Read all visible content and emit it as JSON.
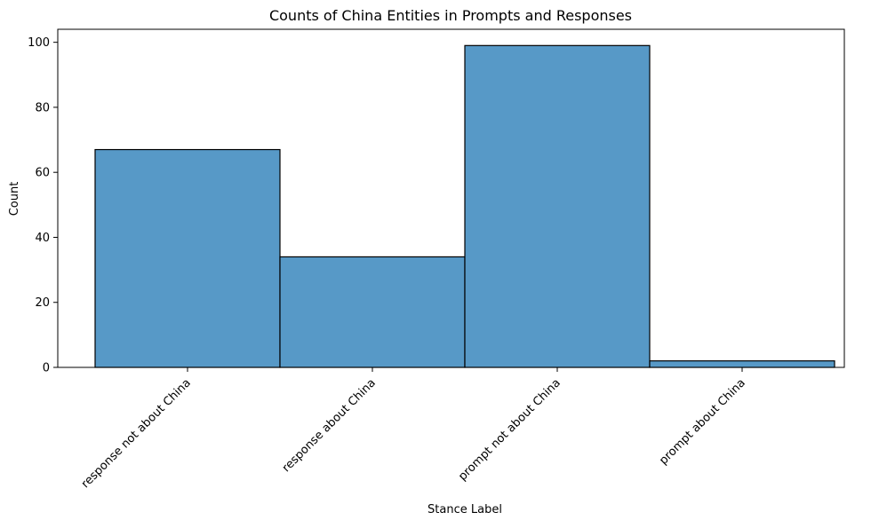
{
  "chart_data": {
    "type": "bar",
    "title": "Counts of China Entities in Prompts and Responses",
    "xlabel": "Stance Label",
    "ylabel": "Count",
    "categories": [
      "response not about China",
      "response about China",
      "prompt not about China",
      "prompt about China"
    ],
    "values": [
      67,
      34,
      99,
      2
    ],
    "ylim": [
      0,
      104
    ],
    "yticks": [
      0,
      20,
      40,
      60,
      80,
      100
    ],
    "grid": false,
    "bar_color": "#5799c7",
    "edge_color": "#000000"
  }
}
